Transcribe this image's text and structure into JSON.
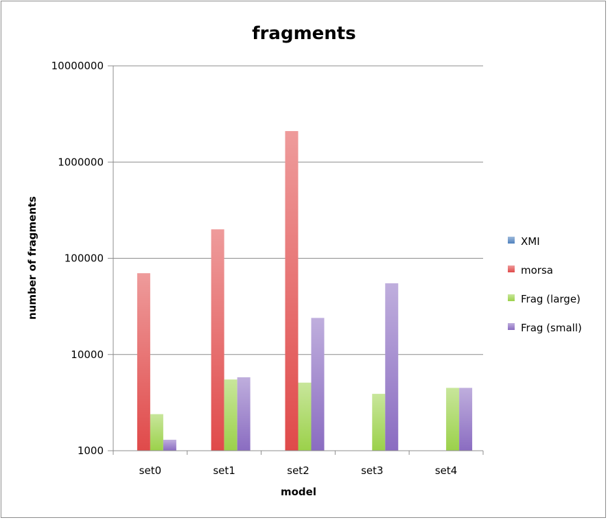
{
  "chart_data": {
    "type": "bar",
    "title": "fragments",
    "xlabel": "model",
    "ylabel": "number of fragments",
    "yscale": "log",
    "ylim": [
      1000,
      10000000
    ],
    "yticks": [
      "1000",
      "10000",
      "100000",
      "1000000",
      "10000000"
    ],
    "categories": [
      "set0",
      "set1",
      "set2",
      "set3",
      "set4"
    ],
    "grid": true,
    "legend_position": "right",
    "series": [
      {
        "name": "XMI",
        "color": "#4f81bd",
        "values": [
          null,
          null,
          null,
          null,
          null
        ]
      },
      {
        "name": "morsa",
        "color": "#e04a4a",
        "values": [
          70000,
          200000,
          2100000,
          null,
          null
        ]
      },
      {
        "name": "Frag (large)",
        "color": "#9bd14a",
        "values": [
          2400,
          5500,
          5100,
          3900,
          4500
        ]
      },
      {
        "name": "Frag (small)",
        "color": "#8a6cc1",
        "values": [
          1300,
          5800,
          24000,
          55000,
          4500
        ]
      }
    ]
  }
}
